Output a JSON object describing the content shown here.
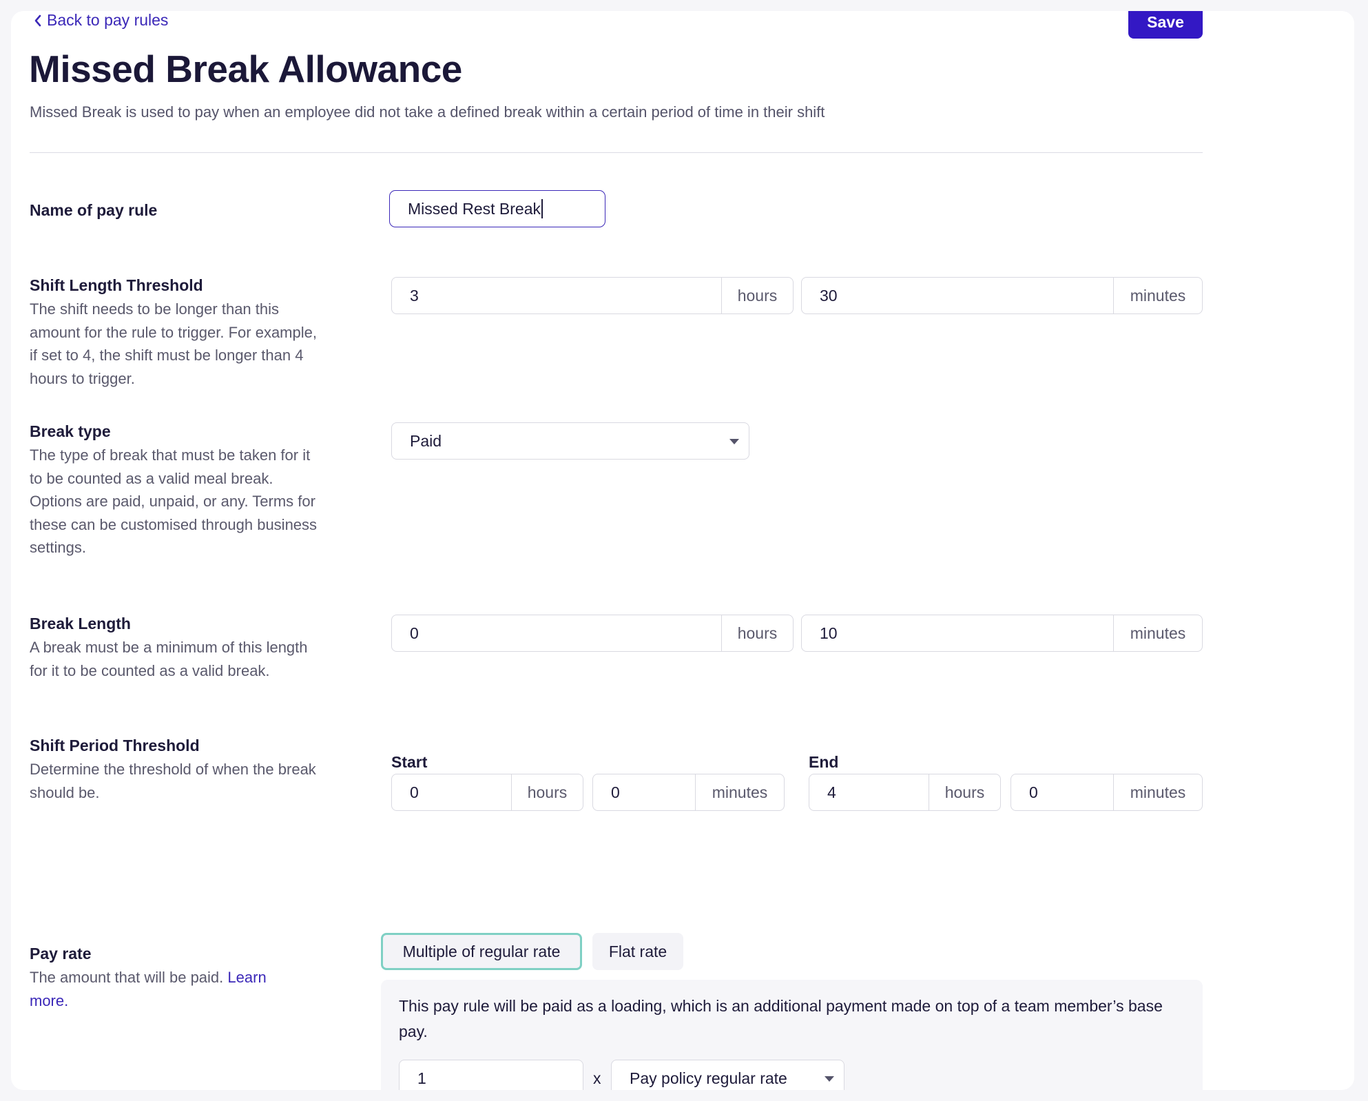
{
  "header": {
    "back_label": "Back to pay rules",
    "save_label": "Save",
    "title": "Missed Break Allowance",
    "description": "Missed Break is used to pay when an employee did not take a defined break within a certain period of time in their shift"
  },
  "name_rule": {
    "label": "Name of pay rule",
    "value": "Missed Rest Break"
  },
  "shift_length": {
    "label": "Shift Length Threshold",
    "help": "The shift needs to be longer than this amount for the rule to trigger. For example, if set to 4, the shift must be longer than 4 hours to trigger.",
    "hours": "3",
    "minutes": "30"
  },
  "break_type": {
    "label": "Break type",
    "help": "The type of break that must be taken for it to be counted as a valid meal break. Options are paid, unpaid, or any. Terms for these can be customised through business settings.",
    "selected": "Paid"
  },
  "break_length": {
    "label": "Break Length",
    "help": "A break must be a minimum of this length for it to be counted as a valid break.",
    "hours": "0",
    "minutes": "10"
  },
  "shift_period": {
    "label": "Shift Period Threshold",
    "help": "Determine the threshold of when the break should be.",
    "start_label": "Start",
    "end_label": "End",
    "start_hours": "0",
    "start_minutes": "0",
    "end_hours": "4",
    "end_minutes": "0"
  },
  "pay_rate": {
    "label": "Pay rate",
    "help": "The amount that will be paid.",
    "learn_more": "Learn more.",
    "option_multiple": "Multiple of regular rate",
    "option_flat": "Flat rate",
    "panel_text": "This pay rule will be paid as a loading, which is an additional payment made on top of a team member’s base pay.",
    "multiplier": "1",
    "times": "x",
    "rate_selected": "Pay policy regular rate"
  },
  "units": {
    "hours": "hours",
    "minutes": "minutes"
  },
  "colors": {
    "accent": "#3318c4",
    "link": "#3b28b8",
    "active_toggle_border": "#7fd0c4"
  }
}
